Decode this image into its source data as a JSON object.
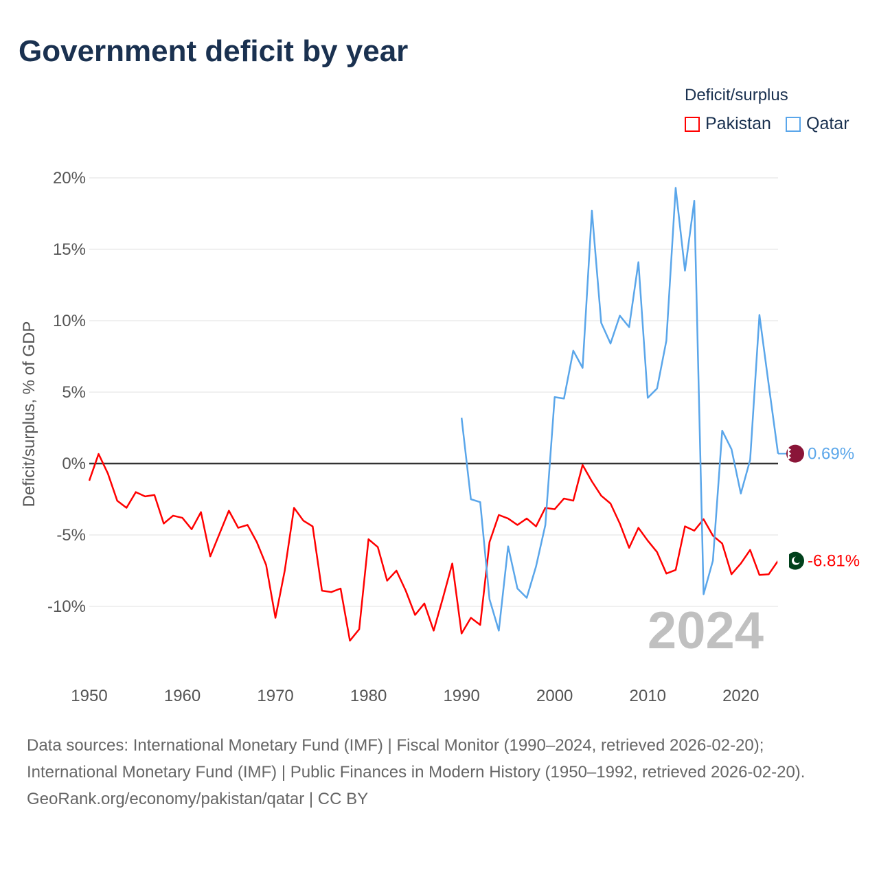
{
  "title": "Government deficit by year",
  "legend": {
    "title": "Deficit/surplus",
    "items": [
      {
        "label": "Pakistan",
        "color": "#ff0000"
      },
      {
        "label": "Qatar",
        "color": "#5aa6ea"
      }
    ]
  },
  "year_watermark": "2024",
  "source_lines": [
    "Data sources: International Monetary Fund (IMF) | Fiscal Monitor (1990–2024, retrieved 2026-02-20); International Monetary Fund (IMF) | Public Finances in Modern History (1950–1992, retrieved 2026-02-20).",
    "GeoRank.org/economy/pakistan/qatar | CC BY"
  ],
  "chart_data": {
    "type": "line",
    "title": "Government deficit by year",
    "xlabel": "",
    "ylabel": "Deficit/surplus, % of GDP",
    "xlim": [
      1950,
      2024
    ],
    "ylim": [
      -14,
      21
    ],
    "xticks": [
      1950,
      1960,
      1970,
      1980,
      1990,
      2000,
      2010,
      2020
    ],
    "xtick_labels": [
      "1950",
      "1960",
      "1970",
      "1980",
      "1990",
      "2000",
      "2010",
      "2020"
    ],
    "yticks": [
      20,
      15,
      10,
      5,
      0,
      -5,
      -10
    ],
    "ytick_labels": [
      "20%",
      "15%",
      "10%",
      "5%",
      "0%",
      "-5%",
      "-10%"
    ],
    "grid": true,
    "legend_position": "top-right",
    "series": [
      {
        "name": "Pakistan",
        "color": "#ff0000",
        "start_year": 1950,
        "end_label": "-6.81%",
        "flag": "pakistan-flag",
        "values": [
          -1.2,
          0.67,
          -0.7,
          -2.6,
          -3.1,
          -2.0,
          -2.3,
          -2.2,
          -4.2,
          -3.65,
          -3.8,
          -4.6,
          -3.4,
          -6.5,
          -4.9,
          -3.3,
          -4.5,
          -4.3,
          -5.5,
          -7.1,
          -10.8,
          -7.5,
          -3.1,
          -4.0,
          -4.4,
          -8.9,
          -9.0,
          -8.75,
          -12.4,
          -11.6,
          -5.3,
          -5.85,
          -8.2,
          -7.5,
          -8.9,
          -10.6,
          -9.8,
          -11.7,
          -9.4,
          -7.0,
          -11.9,
          -10.8,
          -11.3,
          -5.5,
          -3.6,
          -3.85,
          -4.3,
          -3.85,
          -4.4,
          -3.1,
          -3.2,
          -2.45,
          -2.6,
          -0.1,
          -1.25,
          -2.25,
          -2.8,
          -4.2,
          -5.9,
          -4.5,
          -5.4,
          -6.2,
          -7.7,
          -7.45,
          -4.4,
          -4.7,
          -3.9,
          -5.05,
          -5.6,
          -7.75,
          -7.0,
          -6.05,
          -7.8,
          -7.75,
          -6.81
        ]
      },
      {
        "name": "Qatar",
        "color": "#5aa6ea",
        "start_year": 1990,
        "end_label": "0.69%",
        "flag": "qatar-flag",
        "values": [
          3.2,
          -2.5,
          -2.7,
          -9.5,
          -11.7,
          -5.8,
          -8.75,
          -9.4,
          -7.2,
          -4.3,
          4.65,
          4.55,
          7.9,
          6.7,
          17.7,
          9.85,
          8.4,
          10.35,
          9.55,
          14.1,
          4.6,
          5.25,
          8.6,
          19.3,
          13.5,
          18.4,
          -9.15,
          -6.8,
          2.3,
          1.0,
          -2.1,
          0.25,
          10.4,
          5.5,
          0.69
        ]
      }
    ]
  }
}
